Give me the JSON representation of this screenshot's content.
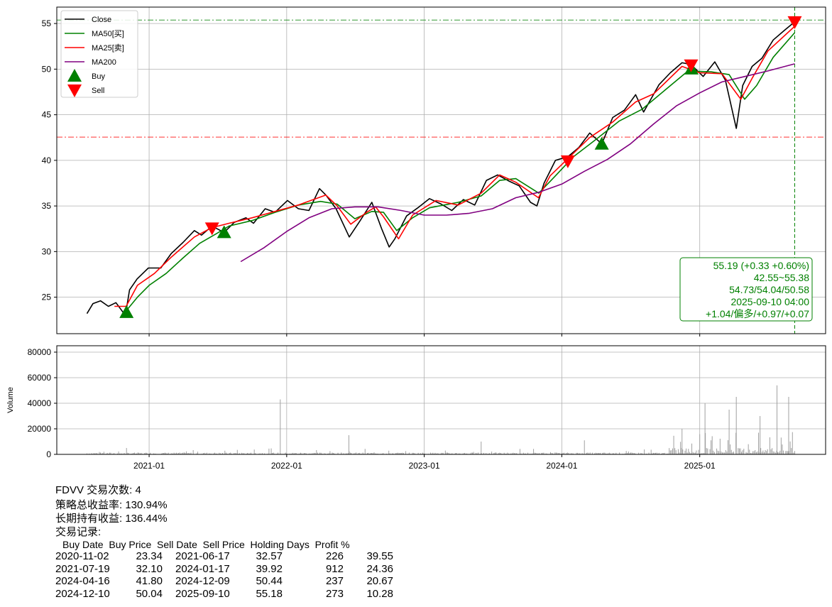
{
  "chart_data": [
    {
      "type": "line",
      "ylim": [
        21,
        56.8
      ],
      "yticks": [
        25,
        30,
        35,
        40,
        45,
        50,
        55
      ],
      "grid": true,
      "legend_position": "top-left",
      "legend": [
        "Close",
        "MA50[买]",
        "MA25[卖]",
        "MA200",
        "Buy",
        "Sell"
      ],
      "colors": {
        "close": "#000000",
        "ma50": "#008000",
        "ma25": "#ff0000",
        "ma200": "#800080",
        "buy": "#008000",
        "sell": "#ff0000"
      },
      "series": [
        {
          "name": "Close",
          "color": "#000000",
          "points": [
            [
              "2020-07-20",
              23.2
            ],
            [
              "2020-08-05",
              24.3
            ],
            [
              "2020-08-25",
              24.6
            ],
            [
              "2020-09-15",
              24.0
            ],
            [
              "2020-10-05",
              24.4
            ],
            [
              "2020-10-30",
              23.0
            ],
            [
              "2020-11-10",
              25.8
            ],
            [
              "2020-11-30",
              27.0
            ],
            [
              "2020-12-30",
              28.2
            ],
            [
              "2021-02-01",
              28.2
            ],
            [
              "2021-03-01",
              29.8
            ],
            [
              "2021-04-01",
              31.0
            ],
            [
              "2021-05-01",
              32.3
            ],
            [
              "2021-05-20",
              31.8
            ],
            [
              "2021-06-17",
              32.8
            ],
            [
              "2021-07-19",
              32.1
            ],
            [
              "2021-08-15",
              33.2
            ],
            [
              "2021-09-15",
              33.7
            ],
            [
              "2021-10-05",
              33.1
            ],
            [
              "2021-11-05",
              34.7
            ],
            [
              "2021-12-01",
              34.3
            ],
            [
              "2022-01-03",
              35.6
            ],
            [
              "2022-02-01",
              34.7
            ],
            [
              "2022-03-01",
              34.5
            ],
            [
              "2022-03-29",
              36.9
            ],
            [
              "2022-04-15",
              36.2
            ],
            [
              "2022-05-12",
              34.7
            ],
            [
              "2022-06-16",
              31.6
            ],
            [
              "2022-07-15",
              33.4
            ],
            [
              "2022-08-15",
              35.4
            ],
            [
              "2022-09-10",
              32.5
            ],
            [
              "2022-09-30",
              30.5
            ],
            [
              "2022-10-15",
              31.4
            ],
            [
              "2022-11-15",
              33.9
            ],
            [
              "2022-12-15",
              34.8
            ],
            [
              "2023-01-15",
              35.8
            ],
            [
              "2023-02-15",
              35.2
            ],
            [
              "2023-03-15",
              34.5
            ],
            [
              "2023-04-15",
              35.7
            ],
            [
              "2023-05-15",
              35.1
            ],
            [
              "2023-06-15",
              37.8
            ],
            [
              "2023-07-15",
              38.4
            ],
            [
              "2023-08-15",
              37.7
            ],
            [
              "2023-09-10",
              37.2
            ],
            [
              "2023-10-10",
              35.4
            ],
            [
              "2023-10-27",
              35.0
            ],
            [
              "2023-11-15",
              37.5
            ],
            [
              "2023-12-15",
              40.0
            ],
            [
              "2024-01-17",
              40.4
            ],
            [
              "2024-02-15",
              41.4
            ],
            [
              "2024-03-15",
              43.0
            ],
            [
              "2024-04-16",
              41.8
            ],
            [
              "2024-05-15",
              44.7
            ],
            [
              "2024-06-15",
              45.5
            ],
            [
              "2024-07-15",
              47.2
            ],
            [
              "2024-08-05",
              45.3
            ],
            [
              "2024-09-15",
              48.3
            ],
            [
              "2024-10-15",
              49.6
            ],
            [
              "2024-11-15",
              50.7
            ],
            [
              "2024-12-09",
              50.5
            ],
            [
              "2025-01-10",
              49.2
            ],
            [
              "2025-02-10",
              50.8
            ],
            [
              "2025-03-10",
              48.8
            ],
            [
              "2025-04-08",
              43.5
            ],
            [
              "2025-04-25",
              48.2
            ],
            [
              "2025-05-20",
              50.3
            ],
            [
              "2025-06-15",
              51.2
            ],
            [
              "2025-07-15",
              53.2
            ],
            [
              "2025-08-15",
              54.3
            ],
            [
              "2025-09-10",
              55.19
            ]
          ]
        },
        {
          "name": "MA50[买]",
          "color": "#008000",
          "points": [
            [
              "2020-11-01",
              23.5
            ],
            [
              "2020-12-01",
              25.0
            ],
            [
              "2021-01-01",
              26.3
            ],
            [
              "2021-02-15",
              27.6
            ],
            [
              "2021-04-01",
              29.3
            ],
            [
              "2021-05-15",
              30.9
            ],
            [
              "2021-06-30",
              32.0
            ],
            [
              "2021-08-01",
              32.8
            ],
            [
              "2021-10-01",
              33.4
            ],
            [
              "2021-12-01",
              34.3
            ],
            [
              "2022-02-01",
              35.1
            ],
            [
              "2022-04-01",
              35.5
            ],
            [
              "2022-05-15",
              35.2
            ],
            [
              "2022-07-01",
              33.6
            ],
            [
              "2022-08-15",
              34.4
            ],
            [
              "2022-09-15",
              34.3
            ],
            [
              "2022-10-20",
              32.3
            ],
            [
              "2022-12-01",
              33.7
            ],
            [
              "2023-01-15",
              34.8
            ],
            [
              "2023-04-01",
              35.4
            ],
            [
              "2023-06-01",
              36.1
            ],
            [
              "2023-07-20",
              37.8
            ],
            [
              "2023-09-01",
              38.0
            ],
            [
              "2023-11-01",
              36.4
            ],
            [
              "2023-12-15",
              38.3
            ],
            [
              "2024-02-01",
              40.4
            ],
            [
              "2024-04-01",
              42.3
            ],
            [
              "2024-06-01",
              44.3
            ],
            [
              "2024-08-01",
              45.6
            ],
            [
              "2024-10-01",
              47.7
            ],
            [
              "2024-12-01",
              49.8
            ],
            [
              "2025-02-01",
              49.7
            ],
            [
              "2025-03-20",
              49.4
            ],
            [
              "2025-04-30",
              46.7
            ],
            [
              "2025-06-01",
              48.2
            ],
            [
              "2025-07-15",
              51.3
            ],
            [
              "2025-09-10",
              54.0
            ]
          ]
        },
        {
          "name": "MA25[卖]",
          "color": "#ff0000",
          "points": [
            [
              "2020-10-01",
              24.0
            ],
            [
              "2020-11-01",
              24.0
            ],
            [
              "2020-12-01",
              26.3
            ],
            [
              "2021-01-15",
              27.6
            ],
            [
              "2021-03-01",
              29.4
            ],
            [
              "2021-05-01",
              31.6
            ],
            [
              "2021-06-15",
              32.6
            ],
            [
              "2021-08-01",
              33.1
            ],
            [
              "2021-10-01",
              33.7
            ],
            [
              "2021-12-01",
              34.4
            ],
            [
              "2022-02-01",
              35.1
            ],
            [
              "2022-04-15",
              36.2
            ],
            [
              "2022-05-15",
              35.0
            ],
            [
              "2022-06-20",
              33.0
            ],
            [
              "2022-08-01",
              34.3
            ],
            [
              "2022-08-25",
              34.9
            ],
            [
              "2022-09-15",
              33.8
            ],
            [
              "2022-10-25",
              31.4
            ],
            [
              "2022-12-01",
              34.0
            ],
            [
              "2023-02-01",
              35.6
            ],
            [
              "2023-04-01",
              35.1
            ],
            [
              "2023-06-01",
              36.4
            ],
            [
              "2023-07-20",
              38.4
            ],
            [
              "2023-09-01",
              37.6
            ],
            [
              "2023-10-31",
              35.9
            ],
            [
              "2023-12-01",
              38.3
            ],
            [
              "2024-01-15",
              40.1
            ],
            [
              "2024-03-15",
              42.5
            ],
            [
              "2024-05-15",
              44.2
            ],
            [
              "2024-07-15",
              46.4
            ],
            [
              "2024-09-01",
              47.3
            ],
            [
              "2024-11-15",
              50.3
            ],
            [
              "2025-01-01",
              49.6
            ],
            [
              "2025-03-01",
              49.5
            ],
            [
              "2025-04-20",
              46.7
            ],
            [
              "2025-05-20",
              49.0
            ],
            [
              "2025-07-01",
              52.0
            ],
            [
              "2025-09-10",
              54.7
            ]
          ]
        },
        {
          "name": "MA200",
          "color": "#800080",
          "points": [
            [
              "2021-09-01",
              28.9
            ],
            [
              "2021-11-01",
              30.4
            ],
            [
              "2022-01-01",
              32.2
            ],
            [
              "2022-03-01",
              33.7
            ],
            [
              "2022-05-01",
              34.7
            ],
            [
              "2022-07-01",
              34.9
            ],
            [
              "2022-09-01",
              34.9
            ],
            [
              "2022-11-01",
              34.5
            ],
            [
              "2023-01-01",
              34.0
            ],
            [
              "2023-03-01",
              34.0
            ],
            [
              "2023-05-01",
              34.2
            ],
            [
              "2023-07-01",
              34.7
            ],
            [
              "2023-09-01",
              35.9
            ],
            [
              "2023-11-01",
              36.5
            ],
            [
              "2024-01-01",
              37.4
            ],
            [
              "2024-03-01",
              38.8
            ],
            [
              "2024-05-01",
              40.1
            ],
            [
              "2024-07-01",
              41.8
            ],
            [
              "2024-09-01",
              44.0
            ],
            [
              "2024-11-01",
              46.0
            ],
            [
              "2025-01-01",
              47.4
            ],
            [
              "2025-03-01",
              48.6
            ],
            [
              "2025-05-01",
              49.2
            ],
            [
              "2025-07-01",
              49.8
            ],
            [
              "2025-09-10",
              50.58
            ]
          ]
        }
      ],
      "buy_signals": [
        [
          "2020-11-02",
          23.34
        ],
        [
          "2021-07-19",
          32.1
        ],
        [
          "2024-04-16",
          41.8
        ],
        [
          "2024-12-10",
          50.04
        ]
      ],
      "sell_signals": [
        [
          "2021-06-17",
          32.57
        ],
        [
          "2024-01-17",
          39.92
        ],
        [
          "2024-12-09",
          50.44
        ],
        [
          "2025-09-10",
          55.18
        ]
      ],
      "reference_lines": {
        "horizontal": [
          55.38,
          42.55
        ],
        "vertical_date": "2025-09-10"
      },
      "annotation": [
        "55.19 (+0.33 +0.60%)",
        "42.55~55.38",
        "54.73/54.04/50.58",
        "2025-09-10 04:00",
        "+1.04/偏多/+0.97/+0.07"
      ]
    },
    {
      "type": "bar",
      "ylabel": "Volume",
      "ylim": [
        0,
        85000
      ],
      "yticks": [
        0,
        20000,
        40000,
        60000,
        80000
      ],
      "xticks": [
        "2021-01",
        "2022-01",
        "2023-01",
        "2024-01",
        "2025-01"
      ],
      "grid": true,
      "color": "#a0a0a0",
      "spikes": [
        [
          "2021-12-15",
          43000
        ],
        [
          "2022-06-15",
          15000
        ],
        [
          "2023-06-01",
          10000
        ],
        [
          "2024-03-01",
          11000
        ],
        [
          "2024-11-15",
          20000
        ],
        [
          "2025-01-15",
          40000
        ],
        [
          "2025-03-20",
          35000
        ],
        [
          "2025-04-08",
          45000
        ],
        [
          "2025-06-10",
          30000
        ],
        [
          "2025-07-25",
          54000
        ],
        [
          "2025-08-25",
          45000
        ]
      ]
    }
  ],
  "summary": {
    "title": "FDVV 交易次数: 4",
    "strategy_return": "策略总收益率: 130.94%",
    "hold_return": "长期持有收益: 136.44%",
    "records_label": "交易记录:",
    "table_header": "Buy Date  Buy Price  Sell Date  Sell Price  Holding Days  Profit %",
    "trades": [
      {
        "buy_date": "2020-11-02",
        "buy_price": "23.34",
        "sell_date": "2021-06-17",
        "sell_price": "32.57",
        "days": "226",
        "profit": "39.55"
      },
      {
        "buy_date": "2021-07-19",
        "buy_price": "32.10",
        "sell_date": "2024-01-17",
        "sell_price": "39.92",
        "days": "912",
        "profit": "24.36"
      },
      {
        "buy_date": "2024-04-16",
        "buy_price": "41.80",
        "sell_date": "2024-12-09",
        "sell_price": "50.44",
        "days": "237",
        "profit": "20.67"
      },
      {
        "buy_date": "2024-12-10",
        "buy_price": "50.04",
        "sell_date": "2025-09-10",
        "sell_price": "55.18",
        "days": "273",
        "profit": "10.28"
      }
    ]
  }
}
